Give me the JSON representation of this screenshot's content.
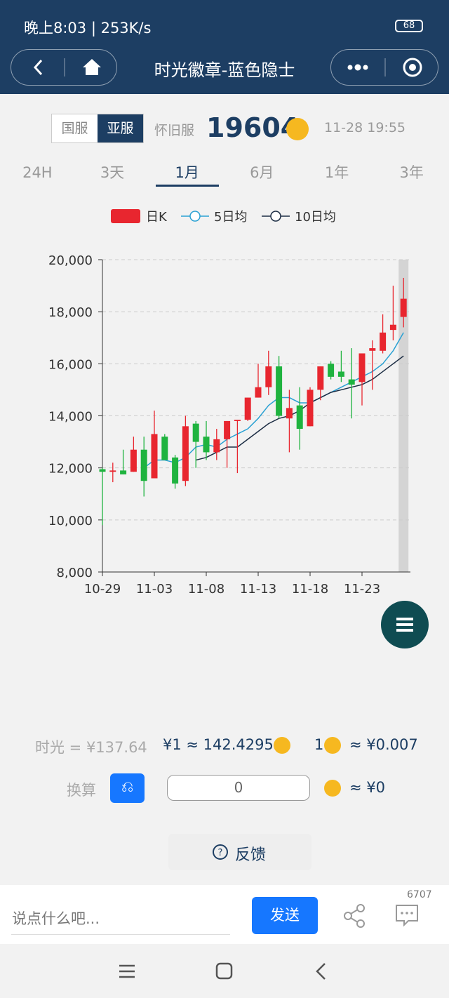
{
  "status_bar": {
    "time": "晚上8:03 | 253K/s",
    "battery": "68"
  },
  "nav": {
    "title": "时光徽章-蓝色隐士"
  },
  "servers": [
    "国服",
    "亚服",
    "怀旧服"
  ],
  "price": "19604",
  "updated": "11-28 19:55",
  "ranges": [
    "24H",
    "3天",
    "1月",
    "6月",
    "1年",
    "3年"
  ],
  "chart_data": {
    "type": "candlestick",
    "name": "日K",
    "up_color": "#e8262f",
    "down_color": "#1fb33f",
    "categories": [
      "10-29",
      null,
      null,
      null,
      null,
      "11-03",
      null,
      null,
      null,
      null,
      "11-08",
      null,
      null,
      null,
      null,
      "11-13",
      null,
      null,
      null,
      null,
      "11-18",
      null,
      null,
      null,
      null,
      "11-23",
      null,
      null,
      null,
      null
    ],
    "open": [
      11950,
      11850,
      11900,
      11850,
      12700,
      11600,
      13200,
      12400,
      11500,
      13700,
      13200,
      12600,
      13100,
      13800,
      13850,
      14700,
      15100,
      15900,
      13900,
      14400,
      13600,
      15000,
      16000,
      15700,
      15400,
      15300,
      16500,
      16500,
      17300,
      17800
    ],
    "high": [
      12000,
      12200,
      12700,
      13200,
      13200,
      14200,
      13300,
      12500,
      14000,
      13800,
      13800,
      13500,
      13800,
      13850,
      14700,
      16000,
      16500,
      16300,
      15000,
      15100,
      15100,
      15900,
      16100,
      16500,
      16600,
      16400,
      16900,
      17900,
      19000,
      19300
    ],
    "low": [
      9800,
      11450,
      11750,
      11850,
      10900,
      11600,
      12300,
      11200,
      11300,
      12000,
      12300,
      12300,
      12000,
      11800,
      13800,
      14700,
      14800,
      13900,
      12600,
      12700,
      13600,
      14600,
      15400,
      15300,
      13900,
      14400,
      15000,
      16400,
      16900,
      17400
    ],
    "close": [
      11850,
      11900,
      11750,
      12700,
      11500,
      13300,
      12300,
      11400,
      13600,
      13000,
      12600,
      13100,
      13800,
      13850,
      14700,
      15100,
      15900,
      14000,
      14300,
      13500,
      15000,
      15900,
      15500,
      15500,
      15200,
      16400,
      16600,
      17200,
      17500,
      18500
    ],
    "ma": [
      {
        "name": "5日均",
        "color": "#2aa1d3",
        "values": [
          null,
          null,
          null,
          null,
          12000,
          12300,
          12300,
          12200,
          12400,
          12800,
          12900,
          12800,
          13100,
          13300,
          13500,
          13900,
          14400,
          14700,
          14700,
          14500,
          14500,
          14700,
          14900,
          15100,
          15300,
          15500,
          15700,
          16000,
          16500,
          17200
        ]
      },
      {
        "name": "10日均",
        "color": "#1c2d44",
        "values": [
          null,
          null,
          null,
          null,
          null,
          null,
          null,
          null,
          null,
          12300,
          12400,
          12600,
          12800,
          12800,
          13100,
          13400,
          13700,
          13900,
          14000,
          14200,
          14500,
          14700,
          14900,
          15000,
          15100,
          15200,
          15400,
          15700,
          16000,
          16300
        ]
      }
    ],
    "ylim": [
      8000,
      20000
    ],
    "yticks": [
      {
        "value": 8000,
        "label": "8,000"
      },
      {
        "value": 10000,
        "label": "10,000"
      },
      {
        "value": 12000,
        "label": "12,000"
      },
      {
        "value": 14000,
        "label": "14,000"
      },
      {
        "value": 16000,
        "label": "16,000"
      },
      {
        "value": 18000,
        "label": "18,000"
      },
      {
        "value": 20000,
        "label": "20,000"
      }
    ],
    "grid": true
  },
  "rates": {
    "label": "时光 = ¥137.64",
    "rate": "¥1 ≈ 142.4295",
    "coin_prefix": "1",
    "coin_rate": "≈ ¥0.007"
  },
  "convert": {
    "label": "换算",
    "input": "0",
    "result": "≈ ¥0"
  },
  "feedback": "反馈",
  "comment": {
    "placeholder": "说点什么吧...",
    "send": "发送",
    "count": "6707"
  }
}
